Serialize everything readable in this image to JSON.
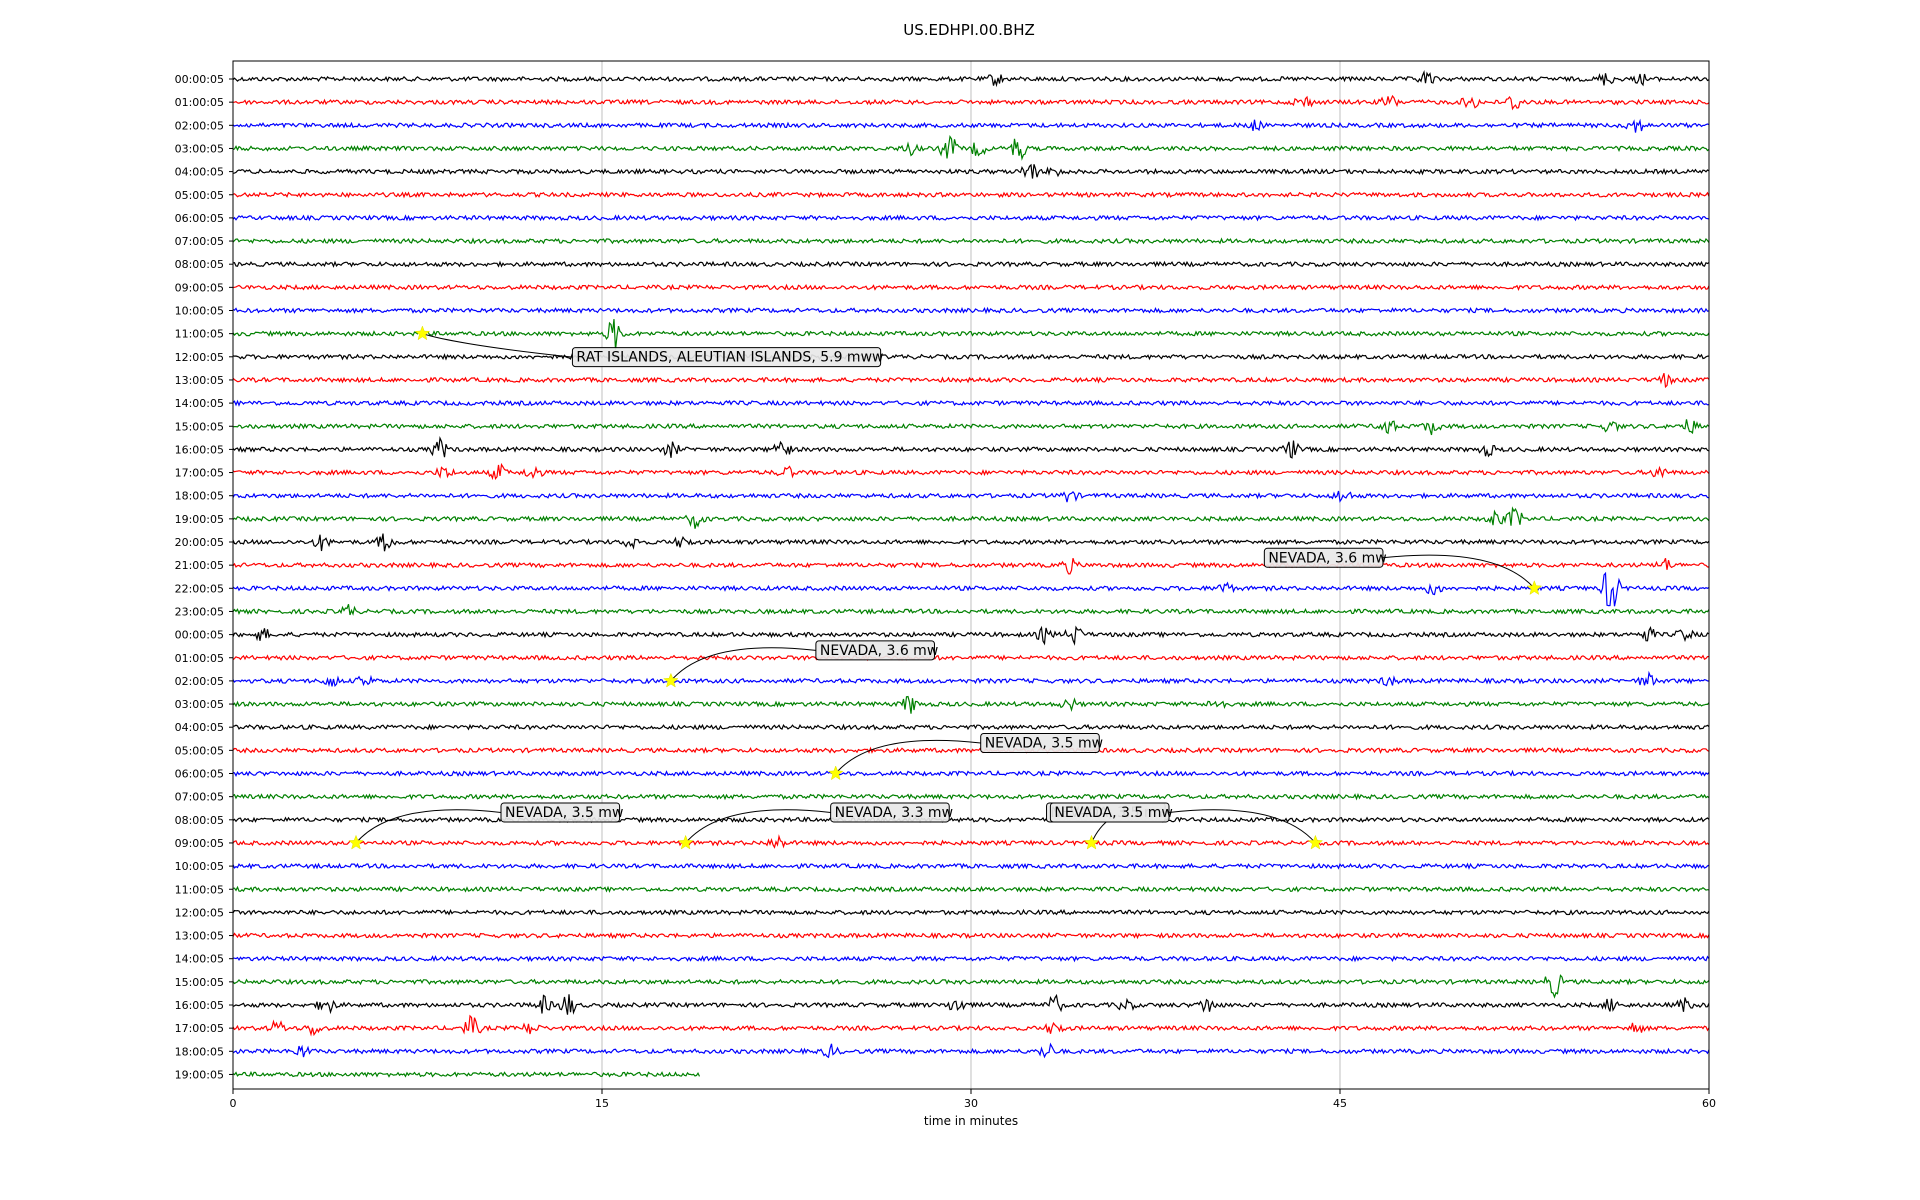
{
  "chart_data": {
    "type": "line",
    "title": "US.EDHPI.00.BHZ",
    "xlabel": "time in minutes",
    "ylabel": "",
    "xlim": [
      0,
      60
    ],
    "xticks": [
      "0",
      "15",
      "30",
      "45",
      "60"
    ],
    "grid": "vertical",
    "trace_colors": [
      "#000000",
      "#ff0000",
      "#0000ff",
      "#008000"
    ],
    "row_labels": [
      "00:00:05",
      "01:00:05",
      "02:00:05",
      "03:00:05",
      "04:00:05",
      "05:00:05",
      "06:00:05",
      "07:00:05",
      "08:00:05",
      "09:00:05",
      "10:00:05",
      "11:00:05",
      "12:00:05",
      "13:00:05",
      "14:00:05",
      "15:00:05",
      "16:00:05",
      "17:00:05",
      "18:00:05",
      "19:00:05",
      "20:00:05",
      "21:00:05",
      "22:00:05",
      "23:00:05",
      "00:00:05",
      "01:00:05",
      "02:00:05",
      "03:00:05",
      "04:00:05",
      "05:00:05",
      "06:00:05",
      "07:00:05",
      "08:00:05",
      "09:00:05",
      "10:00:05",
      "11:00:05",
      "12:00:05",
      "13:00:05",
      "14:00:05",
      "15:00:05",
      "16:00:05",
      "17:00:05",
      "18:00:05",
      "19:00:05"
    ],
    "last_row_end_minute": 19,
    "events": [
      {
        "label": "RAT ISLANDS, ALEUTIAN ISLANDS, 5.9 mww",
        "row": 11,
        "minute": 7.7
      },
      {
        "label": "NEVADA, 3.6 mw",
        "row": 22,
        "minute": 52.9
      },
      {
        "label": "NEVADA, 3.6 mw",
        "row": 26,
        "minute": 17.8
      },
      {
        "label": "NEVADA, 3.5 mw",
        "row": 30,
        "minute": 24.5
      },
      {
        "label": "NEVADA, 3.5 mw",
        "row": 33,
        "minute": 5.0
      },
      {
        "label": "NEVADA, 3.3 mw",
        "row": 33,
        "minute": 18.4
      },
      {
        "label": "NEVADA, 3.5 mw",
        "row": 33,
        "minute": 34.9
      },
      {
        "label": "NEVADA, 3.5 mw",
        "row": 33,
        "minute": 44.0
      }
    ],
    "bursts": [
      {
        "row": 0,
        "minute": 31.0,
        "amp": 0.5
      },
      {
        "row": 0,
        "minute": 48.5,
        "amp": 0.6
      },
      {
        "row": 0,
        "minute": 55.8,
        "amp": 0.5
      },
      {
        "row": 0,
        "minute": 57.3,
        "amp": 0.4
      },
      {
        "row": 1,
        "minute": 43.5,
        "amp": 0.6
      },
      {
        "row": 1,
        "minute": 47.0,
        "amp": 0.6
      },
      {
        "row": 1,
        "minute": 50.3,
        "amp": 0.6
      },
      {
        "row": 1,
        "minute": 52.1,
        "amp": 0.8
      },
      {
        "row": 2,
        "minute": 41.5,
        "amp": 0.4
      },
      {
        "row": 2,
        "minute": 57.0,
        "amp": 0.7
      },
      {
        "row": 3,
        "minute": 27.5,
        "amp": 0.5
      },
      {
        "row": 3,
        "minute": 29.1,
        "amp": 1.2
      },
      {
        "row": 3,
        "minute": 30.3,
        "amp": 0.6
      },
      {
        "row": 3,
        "minute": 31.9,
        "amp": 1.1
      },
      {
        "row": 4,
        "minute": 32.4,
        "amp": 0.9
      },
      {
        "row": 4,
        "minute": 33.4,
        "amp": 0.4
      },
      {
        "row": 11,
        "minute": 15.5,
        "amp": 1.4
      },
      {
        "row": 13,
        "minute": 58.2,
        "amp": 0.5
      },
      {
        "row": 15,
        "minute": 46.9,
        "amp": 0.8
      },
      {
        "row": 15,
        "minute": 48.7,
        "amp": 0.6
      },
      {
        "row": 15,
        "minute": 56.0,
        "amp": 0.5
      },
      {
        "row": 15,
        "minute": 59.2,
        "amp": 0.6
      },
      {
        "row": 16,
        "minute": 8.4,
        "amp": 0.9
      },
      {
        "row": 16,
        "minute": 17.8,
        "amp": 0.6
      },
      {
        "row": 16,
        "minute": 22.3,
        "amp": 1.0
      },
      {
        "row": 16,
        "minute": 43.0,
        "amp": 0.8
      },
      {
        "row": 16,
        "minute": 51.0,
        "amp": 0.5
      },
      {
        "row": 17,
        "minute": 8.6,
        "amp": 0.5
      },
      {
        "row": 17,
        "minute": 10.8,
        "amp": 0.7
      },
      {
        "row": 17,
        "minute": 12.2,
        "amp": 0.6
      },
      {
        "row": 17,
        "minute": 22.5,
        "amp": 0.5
      },
      {
        "row": 17,
        "minute": 58.0,
        "amp": 0.5
      },
      {
        "row": 18,
        "minute": 34.0,
        "amp": 0.5
      },
      {
        "row": 18,
        "minute": 45.1,
        "amp": 0.6
      },
      {
        "row": 19,
        "minute": 18.8,
        "amp": 0.7
      },
      {
        "row": 19,
        "minute": 51.3,
        "amp": 0.7
      },
      {
        "row": 19,
        "minute": 52.1,
        "amp": 0.9
      },
      {
        "row": 20,
        "minute": 3.6,
        "amp": 0.6
      },
      {
        "row": 20,
        "minute": 6.2,
        "amp": 0.8
      },
      {
        "row": 20,
        "minute": 16.2,
        "amp": 0.5
      },
      {
        "row": 20,
        "minute": 18.3,
        "amp": 0.5
      },
      {
        "row": 21,
        "minute": 34.0,
        "amp": 0.6
      },
      {
        "row": 21,
        "minute": 58.2,
        "amp": 0.5
      },
      {
        "row": 22,
        "minute": 56.0,
        "amp": 2.4
      },
      {
        "row": 22,
        "minute": 48.8,
        "amp": 0.5
      },
      {
        "row": 22,
        "minute": 40.3,
        "amp": 0.5
      },
      {
        "row": 23,
        "minute": 4.7,
        "amp": 0.5
      },
      {
        "row": 24,
        "minute": 1.2,
        "amp": 0.5
      },
      {
        "row": 24,
        "minute": 33.0,
        "amp": 0.6
      },
      {
        "row": 24,
        "minute": 34.2,
        "amp": 0.8
      },
      {
        "row": 24,
        "minute": 57.5,
        "amp": 0.6
      },
      {
        "row": 24,
        "minute": 59.0,
        "amp": 0.5
      },
      {
        "row": 26,
        "minute": 4.0,
        "amp": 0.5
      },
      {
        "row": 26,
        "minute": 5.4,
        "amp": 0.5
      },
      {
        "row": 26,
        "minute": 47.0,
        "amp": 0.4
      },
      {
        "row": 26,
        "minute": 57.5,
        "amp": 0.6
      },
      {
        "row": 27,
        "minute": 27.5,
        "amp": 0.8
      },
      {
        "row": 27,
        "minute": 34.0,
        "amp": 0.5
      },
      {
        "row": 27,
        "minute": 40.0,
        "amp": 0.5
      },
      {
        "row": 33,
        "minute": 22.1,
        "amp": 0.6
      },
      {
        "row": 39,
        "minute": 53.7,
        "amp": 1.2
      },
      {
        "row": 40,
        "minute": 3.8,
        "amp": 0.8
      },
      {
        "row": 40,
        "minute": 12.6,
        "amp": 0.7
      },
      {
        "row": 40,
        "minute": 13.6,
        "amp": 1.0
      },
      {
        "row": 40,
        "minute": 29.4,
        "amp": 0.7
      },
      {
        "row": 40,
        "minute": 33.4,
        "amp": 0.8
      },
      {
        "row": 40,
        "minute": 36.3,
        "amp": 0.5
      },
      {
        "row": 40,
        "minute": 39.6,
        "amp": 0.7
      },
      {
        "row": 40,
        "minute": 56.0,
        "amp": 0.5
      },
      {
        "row": 40,
        "minute": 59.0,
        "amp": 0.5
      },
      {
        "row": 41,
        "minute": 1.8,
        "amp": 0.6
      },
      {
        "row": 41,
        "minute": 3.3,
        "amp": 0.6
      },
      {
        "row": 41,
        "minute": 9.7,
        "amp": 1.0
      },
      {
        "row": 41,
        "minute": 12.1,
        "amp": 0.5
      },
      {
        "row": 41,
        "minute": 33.4,
        "amp": 0.6
      },
      {
        "row": 41,
        "minute": 57.0,
        "amp": 0.5
      },
      {
        "row": 42,
        "minute": 2.8,
        "amp": 0.5
      },
      {
        "row": 42,
        "minute": 24.3,
        "amp": 0.5
      },
      {
        "row": 42,
        "minute": 33.1,
        "amp": 0.7
      }
    ]
  }
}
